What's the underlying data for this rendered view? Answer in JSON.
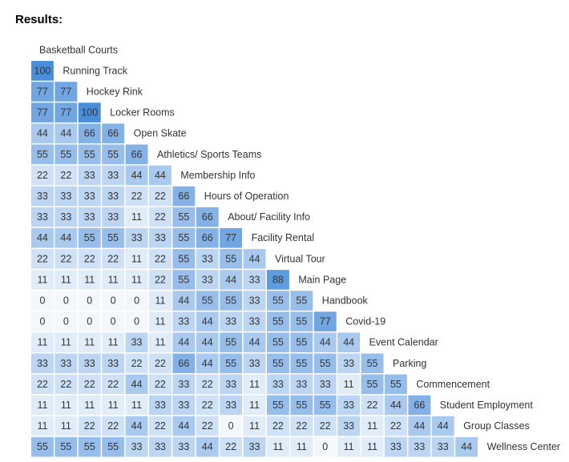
{
  "chart_data": {
    "type": "heatmap",
    "title": "Results:",
    "categories": [
      "Basketball Courts",
      "Running Track",
      "Hockey Rink",
      "Locker Rooms",
      "Open Skate",
      "Athletics/ Sports Teams",
      "Membership Info",
      "Hours of Operation",
      "About/ Facility Info",
      "Facility Rental",
      "Virtual Tour",
      "Main Page",
      "Handbook",
      "Covid-19",
      "Event Calendar",
      "Parking",
      "Commencement",
      "Student Employment",
      "Group Classes",
      "Wellness Center"
    ],
    "values": [
      [],
      [
        100
      ],
      [
        77,
        77
      ],
      [
        77,
        77,
        100
      ],
      [
        44,
        44,
        66,
        66
      ],
      [
        55,
        55,
        55,
        55,
        66
      ],
      [
        22,
        22,
        33,
        33,
        44,
        44
      ],
      [
        33,
        33,
        33,
        33,
        22,
        22,
        66
      ],
      [
        33,
        33,
        33,
        33,
        11,
        22,
        55,
        66
      ],
      [
        44,
        44,
        55,
        55,
        33,
        33,
        55,
        66,
        77
      ],
      [
        22,
        22,
        22,
        22,
        11,
        22,
        55,
        33,
        55,
        44
      ],
      [
        11,
        11,
        11,
        11,
        11,
        22,
        55,
        33,
        44,
        33,
        88
      ],
      [
        0,
        0,
        0,
        0,
        0,
        11,
        44,
        55,
        55,
        33,
        55,
        55
      ],
      [
        0,
        0,
        0,
        0,
        0,
        11,
        33,
        44,
        33,
        33,
        55,
        55,
        77
      ],
      [
        11,
        11,
        11,
        11,
        33,
        11,
        44,
        44,
        55,
        44,
        55,
        55,
        44,
        44
      ],
      [
        33,
        33,
        33,
        33,
        22,
        22,
        66,
        44,
        55,
        33,
        55,
        55,
        55,
        33,
        55
      ],
      [
        22,
        22,
        22,
        22,
        44,
        22,
        33,
        22,
        33,
        11,
        33,
        33,
        33,
        11,
        55,
        55
      ],
      [
        11,
        11,
        11,
        11,
        11,
        33,
        33,
        22,
        33,
        11,
        55,
        55,
        55,
        33,
        22,
        44,
        66
      ],
      [
        11,
        11,
        22,
        22,
        44,
        22,
        44,
        22,
        0,
        11,
        22,
        22,
        22,
        33,
        11,
        22,
        44,
        44
      ],
      [
        55,
        55,
        55,
        55,
        33,
        33,
        33,
        44,
        22,
        33,
        11,
        11,
        0,
        11,
        11,
        33,
        33,
        33,
        44
      ]
    ],
    "colorscale": [
      "#f4f8fd",
      "#4a8edb"
    ],
    "zlim": [
      0,
      100
    ]
  }
}
